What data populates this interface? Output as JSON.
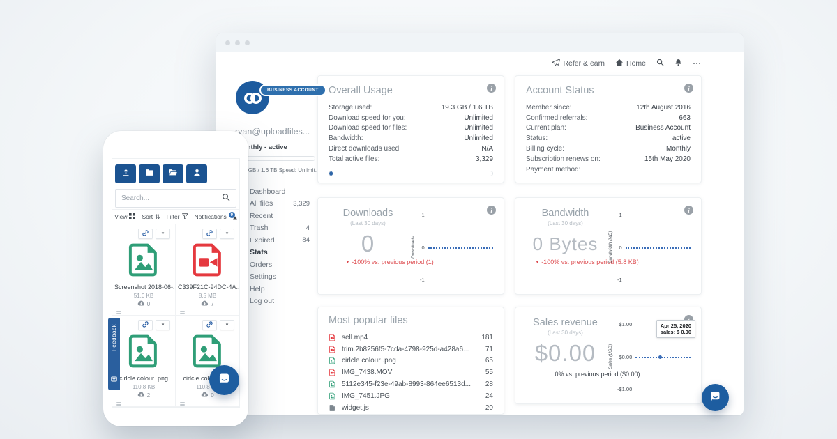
{
  "icons": {
    "info": "i",
    "more": "⋯",
    "sort": "⇅",
    "caret": "▾",
    "arrow_down": "▼",
    "legend": {
      "paper-plane-icon": "send glyph",
      "home-icon": "house",
      "search-icon": "magnifier",
      "bell-icon": "notification bell",
      "upload-icon": "arrow up from tray",
      "folder-icon": "closed folder",
      "folder-open-icon": "open folder",
      "user-icon": "person",
      "grid-icon": "four squares",
      "funnel-icon": "filter funnel",
      "link-icon": "chain link",
      "cloud-download-icon": "cloud with arrow",
      "chat-icon": "speech bubble"
    }
  },
  "colors": {
    "brand_blue": "#1d5b9e",
    "badge_blue": "#2e6fad",
    "button_blue": "#1b5391",
    "red": "#dd4b4f",
    "green": "#2f9e77",
    "chart_blue": "#3a6db8"
  },
  "window": {
    "header": {
      "refer_earn": "Refer & earn",
      "home": "Home"
    },
    "sidebar": {
      "badge": "BUSINESS ACCOUNT",
      "email": "ryan@uploadfiles...",
      "plan_line": "Monthly - active",
      "storage_line": "19.3 GB / 1.6 TB  Speed: Unlimit...",
      "nav": [
        {
          "label": "Dashboard",
          "count": "",
          "active": false
        },
        {
          "label": "All files",
          "count": "3,329",
          "active": false
        },
        {
          "label": "Recent",
          "count": "",
          "active": false
        },
        {
          "label": "Trash",
          "count": "4",
          "active": false
        },
        {
          "label": "Expired",
          "count": "84",
          "active": false
        },
        {
          "label": "Stats",
          "count": "",
          "active": true
        },
        {
          "label": "Orders",
          "count": "",
          "active": false
        },
        {
          "label": "Settings",
          "count": "",
          "active": false
        },
        {
          "label": "Help",
          "count": "",
          "active": false
        },
        {
          "label": "Log out",
          "count": "",
          "active": false
        }
      ]
    },
    "cards": {
      "overall_usage": {
        "title": "Overall Usage",
        "rows": [
          {
            "label": "Storage used:",
            "value": "19.3 GB / 1.6 TB"
          },
          {
            "label": "Download speed for you:",
            "value": "Unlimited"
          },
          {
            "label": "Download speed for files:",
            "value": "Unlimited"
          },
          {
            "label": "Bandwidth:",
            "value": "Unlimited"
          },
          {
            "label": "Direct downloads used",
            "value": "N/A"
          },
          {
            "label": "Total active files:",
            "value": "3,329"
          }
        ],
        "progress_percent": 2
      },
      "account_status": {
        "title": "Account Status",
        "rows": [
          {
            "label": "Member since:",
            "value": "12th August 2016"
          },
          {
            "label": "Confirmed referrals:",
            "value": "663"
          },
          {
            "label": "Current plan:",
            "value": "Business Account"
          },
          {
            "label": "Status:",
            "value": "active"
          },
          {
            "label": "Billing cycle:",
            "value": "Monthly"
          },
          {
            "label": "Subscription renews on:",
            "value": "15th May 2020"
          },
          {
            "label": "Payment method:",
            "value": ""
          }
        ]
      },
      "downloads": {
        "title": "Downloads",
        "subtitle": "(Last 30 days)",
        "big_value": "0",
        "delta": "-100% vs. previous period (1)",
        "chart": {
          "type": "line",
          "ylabel": "Downloads",
          "yticks": [
            "1",
            "0",
            "-1"
          ],
          "series_value": 0,
          "line_style": "dotted"
        }
      },
      "bandwidth": {
        "title": "Bandwidth",
        "subtitle": "(Last 30 days)",
        "big_value": "0 Bytes",
        "delta": "-100% vs. previous period (5.8 KB)",
        "chart": {
          "type": "line",
          "ylabel": "Bandwidth (MB)",
          "yticks": [
            "1",
            "0",
            "-1"
          ],
          "series_value": 0,
          "line_style": "dotted"
        }
      },
      "popular_files": {
        "title": "Most popular files",
        "files": [
          {
            "name": "sell.mp4",
            "count": "181",
            "type": "video"
          },
          {
            "name": "trim.2b8256f5-7cda-4798-925d-a428a6...",
            "count": "71",
            "type": "video"
          },
          {
            "name": "cirlcle colour .png",
            "count": "65",
            "type": "image"
          },
          {
            "name": "IMG_7438.MOV",
            "count": "55",
            "type": "video"
          },
          {
            "name": "5112e345-f23e-49ab-8993-864ee6513d...",
            "count": "28",
            "type": "image"
          },
          {
            "name": "IMG_7451.JPG",
            "count": "24",
            "type": "image"
          },
          {
            "name": "widget.js",
            "count": "20",
            "type": "code"
          }
        ]
      },
      "sales_revenue": {
        "title": "Sales revenue",
        "subtitle": "(Last 30 days)",
        "big_value": "$0.00",
        "delta": "0% vs. previous period ($0.00)",
        "chart": {
          "type": "line",
          "ylabel": "Sales (USD)",
          "yticks": [
            "$1.00",
            "$0.00",
            "-$1.00"
          ],
          "series_value": 0,
          "line_style": "dotted",
          "tooltip": {
            "date": "Apr 25, 2020",
            "label": "sales: $ 0.00"
          }
        }
      }
    }
  },
  "phone": {
    "search": {
      "placeholder": "Search..."
    },
    "toolbar": {
      "view": "View",
      "sort": "Sort",
      "filter": "Filter",
      "notifications": "Notifications",
      "notification_count": "9"
    },
    "files": [
      {
        "name": "Screenshot 2018-06-...",
        "size": "51.0 KB",
        "downloads": "0",
        "type": "image"
      },
      {
        "name": "C339F21C-94DC-4A...",
        "size": "8.5 MB",
        "downloads": "7",
        "type": "video"
      },
      {
        "name": "cirlcle colour .png",
        "size": "110.8 KB",
        "downloads": "2",
        "type": "image"
      },
      {
        "name": "cirlcle colour .png",
        "size": "110.8 KB",
        "downloads": "0",
        "type": "image"
      }
    ],
    "feedback_label": "Feedback"
  }
}
